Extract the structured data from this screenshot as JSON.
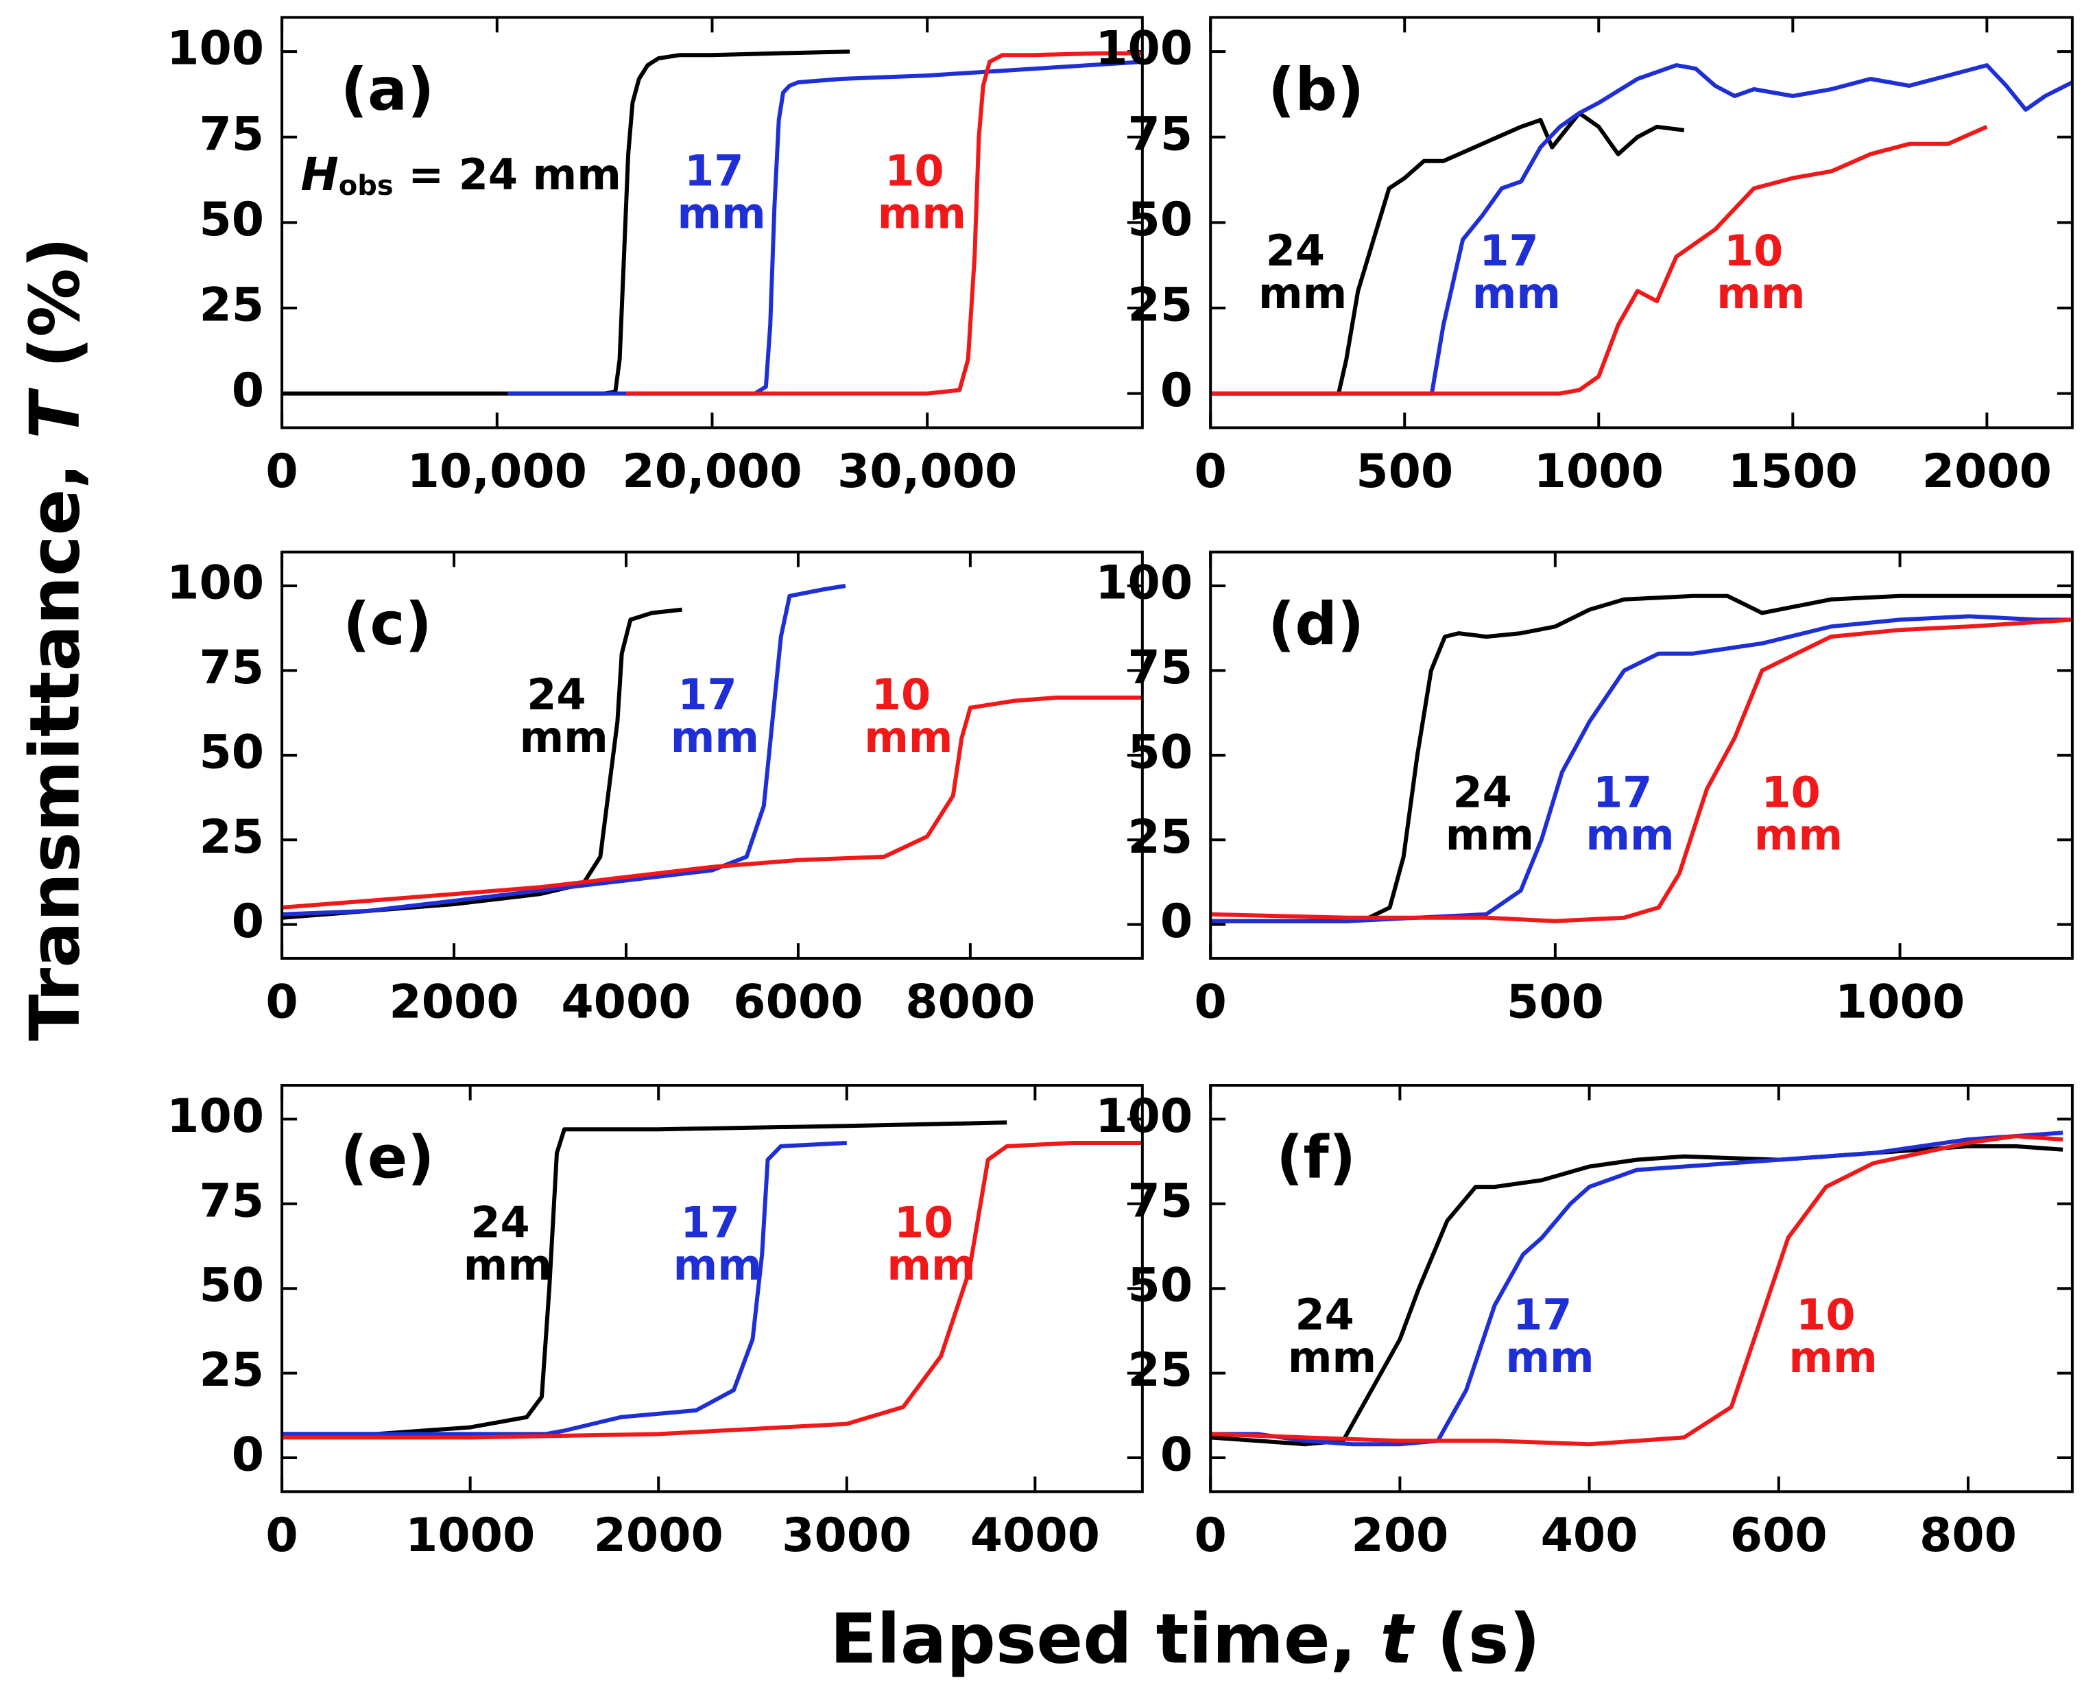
{
  "ylabel": "Transmittance, T (%)",
  "xlabel": "Elapsed time, t (s)",
  "chart_data": [
    {
      "type": "line",
      "title": "(a)",
      "xlim": [
        0,
        40000
      ],
      "xticks": [
        0,
        {
          "value": 10000,
          "label": "10,000"
        },
        {
          "value": 20000,
          "label": "20,000"
        },
        {
          "value": 30000,
          "label": "30,000"
        }
      ],
      "ylim": [
        -10,
        110
      ],
      "yticks": [
        0,
        25,
        50,
        75,
        100
      ],
      "series": [
        {
          "name": "Hobs = 24 mm",
          "color": "#000000",
          "x": [
            0,
            5000,
            10000,
            15000,
            15500,
            15700,
            15900,
            16100,
            16300,
            16600,
            17000,
            17500,
            18500,
            20000,
            23000,
            26400
          ],
          "values": [
            0,
            0,
            0,
            0,
            0.5,
            10,
            40,
            70,
            85,
            92,
            96,
            98,
            99,
            99,
            99.5,
            100
          ]
        },
        {
          "name": "17 mm",
          "color": "#1f2fd6",
          "x": [
            10500,
            15000,
            20000,
            22000,
            22500,
            22700,
            22900,
            23100,
            23300,
            23600,
            24000,
            26000,
            30000,
            35000,
            40000
          ],
          "values": [
            0,
            0,
            0,
            0,
            2,
            20,
            55,
            80,
            88,
            90,
            91,
            92,
            93,
            95,
            97
          ]
        },
        {
          "name": "10 mm",
          "color": "#f01818",
          "x": [
            16000,
            20000,
            25000,
            30000,
            31500,
            31900,
            32200,
            32400,
            32600,
            32900,
            33500,
            35000,
            38000,
            40000
          ],
          "values": [
            0,
            0,
            0,
            0,
            1,
            10,
            40,
            75,
            90,
            97,
            99,
            99,
            99.5,
            99.5
          ]
        }
      ]
    },
    {
      "type": "line",
      "title": "(b)",
      "xlim": [
        0,
        2220
      ],
      "xticks": [
        0,
        500,
        1000,
        1500,
        2000
      ],
      "ylim": [
        -10,
        110
      ],
      "yticks": [
        0,
        25,
        50,
        75,
        100
      ],
      "series": [
        {
          "name": "24 mm",
          "color": "#000000",
          "x": [
            0,
            100,
            200,
            330,
            350,
            380,
            420,
            460,
            500,
            550,
            600,
            700,
            800,
            850,
            880,
            950,
            1000,
            1050,
            1100,
            1150,
            1220
          ],
          "values": [
            0,
            0,
            0,
            0,
            10,
            30,
            45,
            60,
            63,
            68,
            68,
            73,
            78,
            80,
            72,
            82,
            78,
            70,
            75,
            78,
            77
          ]
        },
        {
          "name": "17 mm",
          "color": "#1f2fd6",
          "x": [
            0,
            200,
            400,
            570,
            600,
            650,
            700,
            750,
            800,
            850,
            900,
            950,
            1000,
            1100,
            1200,
            1250,
            1300,
            1350,
            1400,
            1500,
            1600,
            1700,
            1800,
            1900,
            2000,
            2050,
            2100,
            2150,
            2220
          ],
          "values": [
            0,
            0,
            0,
            0,
            20,
            45,
            52,
            60,
            62,
            72,
            78,
            82,
            85,
            92,
            96,
            95,
            90,
            87,
            89,
            87,
            89,
            92,
            90,
            93,
            96,
            90,
            83,
            87,
            91
          ]
        },
        {
          "name": "10 mm",
          "color": "#f01818",
          "x": [
            0,
            300,
            600,
            900,
            950,
            1000,
            1050,
            1100,
            1150,
            1200,
            1300,
            1400,
            1500,
            1600,
            1700,
            1800,
            1900,
            2000
          ],
          "values": [
            0,
            0,
            0,
            0,
            1,
            5,
            20,
            30,
            27,
            40,
            48,
            60,
            63,
            65,
            70,
            73,
            73,
            78
          ]
        }
      ]
    },
    {
      "type": "line",
      "title": "(c)",
      "xlim": [
        0,
        10000
      ],
      "xticks": [
        0,
        2000,
        4000,
        6000,
        8000
      ],
      "ylim": [
        -10,
        110
      ],
      "yticks": [
        0,
        25,
        50,
        75,
        100
      ],
      "series": [
        {
          "name": "24 mm",
          "color": "#000000",
          "x": [
            0,
            1000,
            2000,
            3000,
            3500,
            3700,
            3800,
            3900,
            3950,
            4050,
            4300,
            4650
          ],
          "values": [
            2,
            4,
            6,
            9,
            12,
            20,
            40,
            60,
            80,
            90,
            92,
            93
          ]
        },
        {
          "name": "17 mm",
          "color": "#1f2fd6",
          "x": [
            0,
            1000,
            2000,
            3000,
            4000,
            5000,
            5400,
            5600,
            5700,
            5800,
            5900,
            6300,
            6550
          ],
          "values": [
            3,
            4,
            7,
            10,
            13,
            16,
            20,
            35,
            60,
            85,
            97,
            99,
            100
          ]
        },
        {
          "name": "10 mm",
          "color": "#f01818",
          "x": [
            0,
            1000,
            2000,
            3000,
            4000,
            5000,
            6000,
            7000,
            7500,
            7800,
            7900,
            8000,
            8500,
            9000,
            10000
          ],
          "values": [
            5,
            7,
            9,
            11,
            14,
            17,
            19,
            20,
            26,
            38,
            55,
            64,
            66,
            67,
            67
          ]
        }
      ]
    },
    {
      "type": "line",
      "title": "(d)",
      "xlim": [
        0,
        1250
      ],
      "xticks": [
        0,
        500,
        1000
      ],
      "ylim": [
        -10,
        110
      ],
      "yticks": [
        0,
        25,
        50,
        75,
        100
      ],
      "series": [
        {
          "name": "24 mm",
          "color": "#000000",
          "x": [
            0,
            100,
            200,
            230,
            260,
            280,
            300,
            320,
            340,
            360,
            400,
            450,
            500,
            550,
            600,
            700,
            750,
            800,
            900,
            1000,
            1100,
            1250
          ],
          "values": [
            1,
            1,
            1,
            2,
            5,
            20,
            50,
            75,
            85,
            86,
            85,
            86,
            88,
            93,
            96,
            97,
            97,
            92,
            96,
            97,
            97,
            97
          ]
        },
        {
          "name": "17 mm",
          "color": "#1f2fd6",
          "x": [
            0,
            200,
            300,
            400,
            450,
            480,
            510,
            550,
            600,
            650,
            700,
            800,
            900,
            1000,
            1100,
            1200,
            1250
          ],
          "values": [
            1,
            1,
            2,
            3,
            10,
            25,
            45,
            60,
            75,
            80,
            80,
            83,
            88,
            90,
            91,
            90,
            90
          ]
        },
        {
          "name": "10 mm",
          "color": "#f01818",
          "x": [
            0,
            200,
            400,
            500,
            600,
            650,
            680,
            720,
            760,
            800,
            850,
            900,
            1000,
            1100,
            1250
          ],
          "values": [
            3,
            2,
            2,
            1,
            2,
            5,
            15,
            40,
            55,
            75,
            80,
            85,
            87,
            88,
            90
          ]
        }
      ]
    },
    {
      "type": "line",
      "title": "(e)",
      "xlim": [
        0,
        4570
      ],
      "xticks": [
        0,
        1000,
        2000,
        3000,
        4000
      ],
      "ylim": [
        -10,
        110
      ],
      "yticks": [
        0,
        25,
        50,
        75,
        100
      ],
      "series": [
        {
          "name": "24 mm",
          "color": "#000000",
          "x": [
            0,
            500,
            1000,
            1300,
            1380,
            1420,
            1460,
            1500,
            2000,
            3000,
            3850
          ],
          "values": [
            7,
            7,
            9,
            12,
            18,
            50,
            90,
            97,
            97,
            98,
            99
          ]
        },
        {
          "name": "17 mm",
          "color": "#1f2fd6",
          "x": [
            0,
            1000,
            1400,
            1500,
            1800,
            2200,
            2400,
            2500,
            2550,
            2580,
            2650,
            3000
          ],
          "values": [
            7,
            7,
            7,
            8,
            12,
            14,
            20,
            35,
            60,
            88,
            92,
            93
          ]
        },
        {
          "name": "10 mm",
          "color": "#f01818",
          "x": [
            0,
            1000,
            2000,
            3000,
            3300,
            3500,
            3650,
            3750,
            3850,
            4200,
            4570
          ],
          "values": [
            6,
            6,
            7,
            10,
            15,
            30,
            55,
            88,
            92,
            93,
            93
          ]
        }
      ]
    },
    {
      "type": "line",
      "title": "(f)",
      "xlim": [
        0,
        910
      ],
      "xticks": [
        0,
        200,
        400,
        600,
        800
      ],
      "ylim": [
        -10,
        110
      ],
      "yticks": [
        0,
        25,
        50,
        75,
        100
      ],
      "series": [
        {
          "name": "24 mm",
          "color": "#000000",
          "x": [
            0,
            50,
            100,
            140,
            170,
            200,
            220,
            250,
            280,
            300,
            350,
            400,
            450,
            500,
            600,
            700,
            800,
            850,
            900
          ],
          "values": [
            6,
            5,
            4,
            5,
            20,
            35,
            50,
            70,
            80,
            80,
            82,
            86,
            88,
            89,
            88,
            90,
            92,
            92,
            91
          ]
        },
        {
          "name": "17 mm",
          "color": "#1f2fd6",
          "x": [
            0,
            50,
            100,
            150,
            200,
            240,
            270,
            300,
            330,
            350,
            380,
            400,
            450,
            500,
            600,
            700,
            800,
            900
          ],
          "values": [
            7,
            7,
            5,
            4,
            4,
            5,
            20,
            45,
            60,
            65,
            75,
            80,
            85,
            86,
            88,
            90,
            94,
            96
          ]
        },
        {
          "name": "10 mm",
          "color": "#f01818",
          "x": [
            0,
            100,
            200,
            300,
            400,
            500,
            550,
            580,
            610,
            650,
            700,
            800,
            850,
            900
          ],
          "values": [
            7,
            6,
            5,
            5,
            4,
            6,
            15,
            40,
            65,
            80,
            87,
            93,
            95,
            94
          ]
        }
      ]
    }
  ]
}
